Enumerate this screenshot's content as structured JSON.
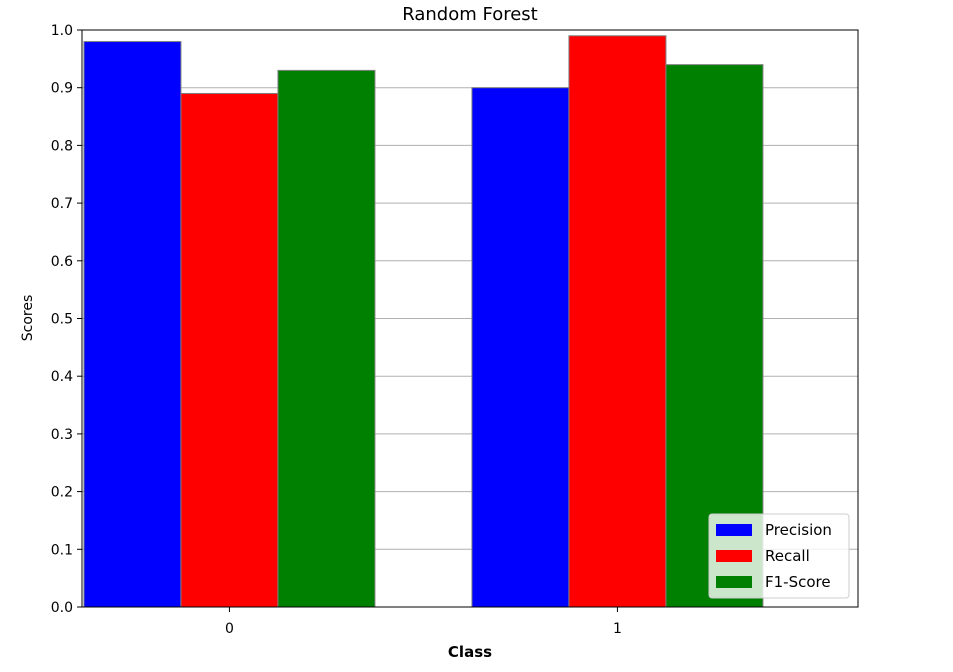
{
  "chart_data": {
    "type": "bar",
    "title": "Random Forest",
    "xlabel": "Class",
    "ylabel": "Scores",
    "categories": [
      "0",
      "1"
    ],
    "series": [
      {
        "name": "Precision",
        "values": [
          0.98,
          0.9
        ],
        "color": "#0000ff"
      },
      {
        "name": "Recall",
        "values": [
          0.89,
          0.99
        ],
        "color": "#ff0000"
      },
      {
        "name": "F1-Score",
        "values": [
          0.93,
          0.94
        ],
        "color": "#008000"
      }
    ],
    "ylim": [
      0,
      1.0
    ],
    "yticks": [
      "0.0",
      "0.1",
      "0.2",
      "0.3",
      "0.4",
      "0.5",
      "0.6",
      "0.7",
      "0.8",
      "0.9",
      "1.0"
    ],
    "grid": "horizontal",
    "legend_position": "lower-right",
    "bar_edge_color": "#808080"
  }
}
